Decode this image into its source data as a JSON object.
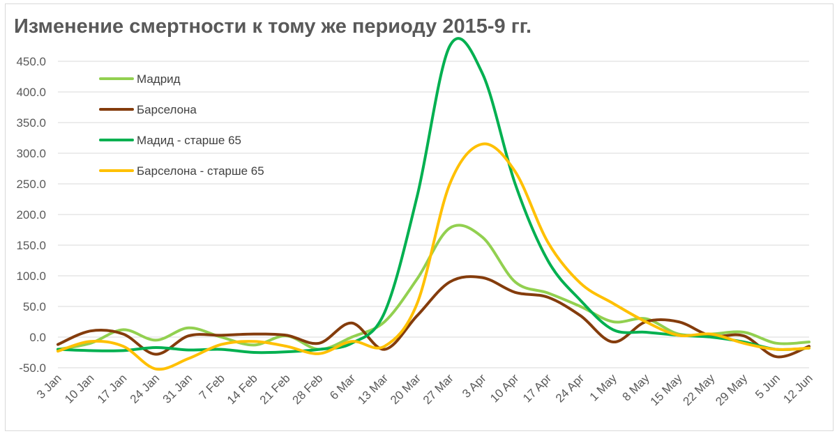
{
  "chart_data": {
    "type": "line",
    "title": "Изменение смертности к тому же периоду 2015-9 гг.",
    "xlabel": "",
    "ylabel": "",
    "ylim": [
      -50,
      450
    ],
    "yticks": [
      "-50.0",
      "0.0",
      "50.0",
      "100.0",
      "150.0",
      "200.0",
      "250.0",
      "300.0",
      "350.0",
      "400.0",
      "450.0"
    ],
    "ytick_values": [
      -50,
      0,
      50,
      100,
      150,
      200,
      250,
      300,
      350,
      400,
      450
    ],
    "categories": [
      "3 Jan",
      "10 Jan",
      "17 Jan",
      "24 Jan",
      "31 Jan",
      "7 Feb",
      "14 Feb",
      "21 Feb",
      "28 Feb",
      "6 Mar",
      "13 Mar",
      "20 Mar",
      "27 Mar",
      "3 Apr",
      "10 Apr",
      "17 Apr",
      "24 Apr",
      "1 May",
      "8 May",
      "15 May",
      "22 May",
      "29 May",
      "5 Jun",
      "12 Jun"
    ],
    "grid": true,
    "legend_position": "top-left",
    "series": [
      {
        "name": "Мадрид",
        "color": "#92d050",
        "values": [
          -20,
          -10,
          12,
          -5,
          15,
          0,
          -13,
          2,
          -20,
          0,
          25,
          95,
          178,
          163,
          90,
          72,
          50,
          25,
          30,
          5,
          5,
          8,
          -10,
          -8
        ]
      },
      {
        "name": "Барселона",
        "color": "#843c0c",
        "values": [
          -12,
          10,
          5,
          -28,
          2,
          3,
          5,
          3,
          -10,
          23,
          -20,
          35,
          90,
          97,
          73,
          65,
          35,
          -8,
          25,
          25,
          2,
          2,
          -32,
          -15
        ]
      },
      {
        "name": "Мадид - старше 65",
        "color": "#00b050",
        "values": [
          -20,
          -22,
          -22,
          -17,
          -21,
          -20,
          -25,
          -24,
          -20,
          -10,
          40,
          230,
          475,
          430,
          250,
          125,
          60,
          12,
          8,
          3,
          0,
          -8,
          -20,
          -18
        ]
      },
      {
        "name": "Барселона - старше 65",
        "color": "#ffc000",
        "values": [
          -23,
          -7,
          -15,
          -52,
          -35,
          -12,
          -7,
          -15,
          -27,
          -7,
          -15,
          55,
          250,
          315,
          270,
          155,
          88,
          55,
          25,
          3,
          5,
          -10,
          -20,
          -18
        ]
      }
    ]
  }
}
